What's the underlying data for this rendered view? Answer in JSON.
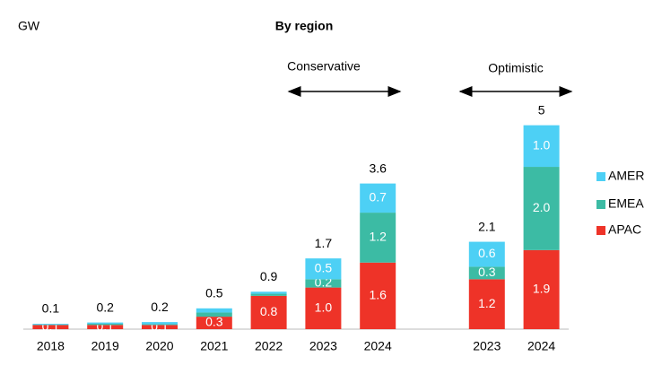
{
  "chart_data": {
    "type": "stacked_bar",
    "title": "By region",
    "unit_label": "GW",
    "group_labels": [
      "Conservative",
      "Optimistic"
    ],
    "categories": [
      "2018",
      "2019",
      "2020",
      "2021",
      "2022",
      "2023",
      "2024",
      null,
      "2023",
      "2024"
    ],
    "series": [
      {
        "name": "APAC",
        "color": "#ee3328",
        "values": [
          0.1,
          0.1,
          0.1,
          0.3,
          0.8,
          1.0,
          1.6,
          null,
          1.2,
          1.9
        ],
        "value_labels": [
          "0.1",
          "0.1",
          "0.1",
          "0.3",
          "0.8",
          "1.0",
          "1.6",
          null,
          "1.2",
          "1.9"
        ]
      },
      {
        "name": "EMEA",
        "color": "#3cbba4",
        "values": [
          0.01,
          0.03,
          0.02,
          0.1,
          0.05,
          0.2,
          1.2,
          null,
          0.3,
          2.0
        ],
        "value_labels": [
          null,
          null,
          null,
          null,
          null,
          "0.2",
          "1.2",
          null,
          "0.3",
          "2.0"
        ]
      },
      {
        "name": "AMER",
        "color": "#4dd0f5",
        "values": [
          0.02,
          0.03,
          0.05,
          0.1,
          0.05,
          0.5,
          0.7,
          null,
          0.6,
          1.0
        ],
        "value_labels": [
          null,
          null,
          null,
          null,
          null,
          "0.5",
          "0.7",
          null,
          "0.6",
          "1.0"
        ]
      }
    ],
    "totals": [
      0.1,
      0.2,
      0.2,
      0.5,
      0.9,
      1.7,
      3.6,
      null,
      2.1,
      5.0
    ],
    "ylim": [
      0,
      5
    ]
  }
}
